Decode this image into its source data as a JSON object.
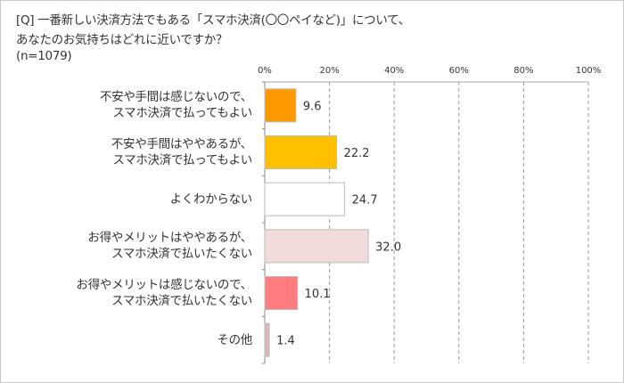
{
  "question": {
    "line1": "[Q] 一番新しい決済方法でもある「スマホ決済(〇〇ペイなど)」について、",
    "line2": "あなたのお気持ちはどれに近いですか？",
    "sample": "(n=1079)"
  },
  "chart_data": {
    "type": "bar",
    "orientation": "horizontal",
    "title": "[Q] 一番新しい決済方法でもある「スマホ決済(〇〇ペイなど)」について、あなたのお気持ちはどれに近いですか？",
    "xlabel": "",
    "ylabel": "",
    "xlim": [
      0,
      100
    ],
    "tick_labels": [
      "0%",
      "20%",
      "40%",
      "60%",
      "80%",
      "100%"
    ],
    "ticks": [
      0,
      20,
      40,
      60,
      80,
      100
    ],
    "grid": true,
    "categories": [
      "不安や手間は感じないので、\nスマホ決済で払ってもよい",
      "不安や手間はややあるが、\nスマホ決済で払ってもよい",
      "よくわからない",
      "お得やメリットはややあるが、\nスマホ決済で払いたくない",
      "お得やメリットは感じないので、\nスマホ決済で払いたくない",
      "その他"
    ],
    "values": [
      9.6,
      22.2,
      24.7,
      32.0,
      10.1,
      1.4
    ],
    "value_labels": [
      "9.6",
      "22.2",
      "24.7",
      "32.0",
      "10.1",
      "1.4"
    ],
    "colors": [
      "#FF9900",
      "#FFC000",
      "#FFFFFF",
      "#F2DCDB",
      "#FF7C80",
      "#D9B8BC"
    ]
  }
}
